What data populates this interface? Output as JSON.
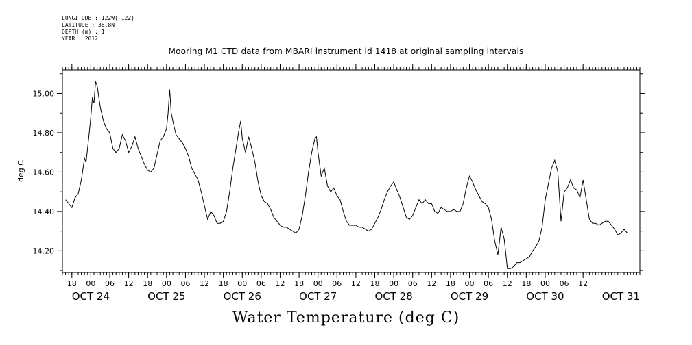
{
  "header": {
    "longitude": "LONGITUDE : 122W(-122)",
    "latitude": "LATITUDE : 36.8N",
    "depth": "DEPTH (m) : 1",
    "year": "YEAR : 2012"
  },
  "chart_data": {
    "type": "line",
    "title": "Mooring M1 CTD data from MBARI instrument id 1418 at original sampling intervals",
    "xlabel": "Water Temperature (deg C)",
    "ylabel": "deg C",
    "x_unit": "hours after 2012-10-24 00:00",
    "xlim": [
      -9,
      174
    ],
    "ylim": [
      14.09,
      15.12
    ],
    "y_ticks": [
      14.2,
      14.4,
      14.6,
      14.8,
      15.0
    ],
    "y_tick_labels": [
      "14.20",
      "14.40",
      "14.60",
      "14.80",
      "15.00"
    ],
    "hour_ticks": [
      {
        "h": -6,
        "label": "18"
      },
      {
        "h": 0,
        "label": "00"
      },
      {
        "h": 6,
        "label": "06"
      },
      {
        "h": 12,
        "label": "12"
      },
      {
        "h": 18,
        "label": "18"
      },
      {
        "h": 24,
        "label": "00"
      },
      {
        "h": 30,
        "label": "06"
      },
      {
        "h": 36,
        "label": "12"
      },
      {
        "h": 42,
        "label": "18"
      },
      {
        "h": 48,
        "label": "00"
      },
      {
        "h": 54,
        "label": "06"
      },
      {
        "h": 60,
        "label": "12"
      },
      {
        "h": 66,
        "label": "18"
      },
      {
        "h": 72,
        "label": "00"
      },
      {
        "h": 78,
        "label": "06"
      },
      {
        "h": 84,
        "label": "12"
      },
      {
        "h": 90,
        "label": "18"
      },
      {
        "h": 96,
        "label": "00"
      },
      {
        "h": 102,
        "label": "06"
      },
      {
        "h": 108,
        "label": "12"
      },
      {
        "h": 114,
        "label": "18"
      },
      {
        "h": 120,
        "label": "00"
      },
      {
        "h": 126,
        "label": "06"
      },
      {
        "h": 132,
        "label": "12"
      },
      {
        "h": 138,
        "label": "18"
      },
      {
        "h": 144,
        "label": "00"
      },
      {
        "h": 150,
        "label": "06"
      },
      {
        "h": 156,
        "label": "12"
      }
    ],
    "day_labels": [
      {
        "h": 0,
        "label": "OCT 24"
      },
      {
        "h": 24,
        "label": "OCT 25"
      },
      {
        "h": 48,
        "label": "OCT 26"
      },
      {
        "h": 72,
        "label": "OCT 27"
      },
      {
        "h": 96,
        "label": "OCT 28"
      },
      {
        "h": 120,
        "label": "OCT 29"
      },
      {
        "h": 144,
        "label": "OCT 30"
      },
      {
        "h": 168,
        "label": "OCT 31"
      }
    ],
    "series": [
      {
        "points": [
          [
            -8,
            14.46
          ],
          [
            -7,
            14.44
          ],
          [
            -6,
            14.42
          ],
          [
            -5,
            14.47
          ],
          [
            -4,
            14.49
          ],
          [
            -3,
            14.56
          ],
          [
            -2,
            14.67
          ],
          [
            -1.5,
            14.65
          ],
          [
            -0.5,
            14.8
          ],
          [
            0,
            14.88
          ],
          [
            0.5,
            14.98
          ],
          [
            1,
            14.95
          ],
          [
            1.5,
            15.06
          ],
          [
            2,
            15.04
          ],
          [
            3,
            14.93
          ],
          [
            4,
            14.86
          ],
          [
            5,
            14.82
          ],
          [
            6,
            14.8
          ],
          [
            7,
            14.72
          ],
          [
            8,
            14.7
          ],
          [
            9,
            14.72
          ],
          [
            10,
            14.79
          ],
          [
            11,
            14.76
          ],
          [
            12,
            14.7
          ],
          [
            13,
            14.73
          ],
          [
            14,
            14.78
          ],
          [
            15,
            14.72
          ],
          [
            16,
            14.68
          ],
          [
            17,
            14.64
          ],
          [
            18,
            14.61
          ],
          [
            19,
            14.6
          ],
          [
            20,
            14.62
          ],
          [
            21,
            14.69
          ],
          [
            22,
            14.76
          ],
          [
            23,
            14.78
          ],
          [
            24,
            14.82
          ],
          [
            24.5,
            14.9
          ],
          [
            25,
            15.02
          ],
          [
            25.5,
            14.9
          ],
          [
            26,
            14.86
          ],
          [
            27,
            14.79
          ],
          [
            28,
            14.77
          ],
          [
            29,
            14.75
          ],
          [
            30,
            14.72
          ],
          [
            31,
            14.68
          ],
          [
            32,
            14.62
          ],
          [
            33,
            14.59
          ],
          [
            34,
            14.56
          ],
          [
            35,
            14.5
          ],
          [
            36,
            14.43
          ],
          [
            37,
            14.36
          ],
          [
            38,
            14.4
          ],
          [
            39,
            14.38
          ],
          [
            40,
            14.34
          ],
          [
            41,
            14.34
          ],
          [
            42,
            14.35
          ],
          [
            43,
            14.4
          ],
          [
            44,
            14.5
          ],
          [
            45,
            14.62
          ],
          [
            46,
            14.72
          ],
          [
            47,
            14.82
          ],
          [
            47.5,
            14.86
          ],
          [
            48,
            14.77
          ],
          [
            49,
            14.7
          ],
          [
            50,
            14.78
          ],
          [
            51,
            14.72
          ],
          [
            52,
            14.65
          ],
          [
            53,
            14.55
          ],
          [
            54,
            14.48
          ],
          [
            55,
            14.45
          ],
          [
            56,
            14.44
          ],
          [
            57,
            14.41
          ],
          [
            58,
            14.37
          ],
          [
            59,
            14.35
          ],
          [
            60,
            14.33
          ],
          [
            61,
            14.32
          ],
          [
            62,
            14.32
          ],
          [
            63,
            14.31
          ],
          [
            64,
            14.3
          ],
          [
            65,
            14.29
          ],
          [
            66,
            14.31
          ],
          [
            67,
            14.38
          ],
          [
            68,
            14.48
          ],
          [
            69,
            14.6
          ],
          [
            70,
            14.7
          ],
          [
            71,
            14.77
          ],
          [
            71.5,
            14.78
          ],
          [
            72,
            14.7
          ],
          [
            73,
            14.58
          ],
          [
            74,
            14.62
          ],
          [
            75,
            14.53
          ],
          [
            76,
            14.5
          ],
          [
            77,
            14.52
          ],
          [
            78,
            14.48
          ],
          [
            79,
            14.46
          ],
          [
            80,
            14.4
          ],
          [
            81,
            14.35
          ],
          [
            82,
            14.33
          ],
          [
            83,
            14.33
          ],
          [
            84,
            14.33
          ],
          [
            85,
            14.32
          ],
          [
            86,
            14.32
          ],
          [
            87,
            14.31
          ],
          [
            88,
            14.3
          ],
          [
            89,
            14.31
          ],
          [
            90,
            14.34
          ],
          [
            91,
            14.37
          ],
          [
            92,
            14.41
          ],
          [
            93,
            14.46
          ],
          [
            94,
            14.5
          ],
          [
            95,
            14.53
          ],
          [
            96,
            14.55
          ],
          [
            97,
            14.51
          ],
          [
            98,
            14.47
          ],
          [
            99,
            14.42
          ],
          [
            100,
            14.37
          ],
          [
            101,
            14.36
          ],
          [
            102,
            14.38
          ],
          [
            103,
            14.42
          ],
          [
            104,
            14.46
          ],
          [
            105,
            14.44
          ],
          [
            106,
            14.46
          ],
          [
            107,
            14.44
          ],
          [
            108,
            14.44
          ],
          [
            109,
            14.4
          ],
          [
            110,
            14.39
          ],
          [
            111,
            14.42
          ],
          [
            112,
            14.41
          ],
          [
            113,
            14.4
          ],
          [
            114,
            14.4
          ],
          [
            115,
            14.41
          ],
          [
            116,
            14.4
          ],
          [
            117,
            14.4
          ],
          [
            118,
            14.44
          ],
          [
            119,
            14.52
          ],
          [
            120,
            14.58
          ],
          [
            121,
            14.55
          ],
          [
            122,
            14.51
          ],
          [
            123,
            14.48
          ],
          [
            124,
            14.45
          ],
          [
            125,
            14.44
          ],
          [
            126,
            14.42
          ],
          [
            127,
            14.36
          ],
          [
            128,
            14.25
          ],
          [
            129,
            14.18
          ],
          [
            130,
            14.32
          ],
          [
            131,
            14.26
          ],
          [
            132,
            14.11
          ],
          [
            133,
            14.11
          ],
          [
            134,
            14.12
          ],
          [
            135,
            14.14
          ],
          [
            136,
            14.14
          ],
          [
            137,
            14.15
          ],
          [
            138,
            14.16
          ],
          [
            139,
            14.17
          ],
          [
            140,
            14.2
          ],
          [
            141,
            14.22
          ],
          [
            142,
            14.25
          ],
          [
            143,
            14.32
          ],
          [
            144,
            14.46
          ],
          [
            145,
            14.54
          ],
          [
            146,
            14.62
          ],
          [
            147,
            14.66
          ],
          [
            148,
            14.6
          ],
          [
            149,
            14.35
          ],
          [
            150,
            14.5
          ],
          [
            151,
            14.52
          ],
          [
            152,
            14.56
          ],
          [
            153,
            14.52
          ],
          [
            154,
            14.51
          ],
          [
            155,
            14.47
          ],
          [
            156,
            14.56
          ],
          [
            157,
            14.46
          ],
          [
            158,
            14.36
          ],
          [
            159,
            14.34
          ],
          [
            160,
            14.34
          ],
          [
            161,
            14.33
          ],
          [
            162,
            14.34
          ],
          [
            163,
            14.35
          ],
          [
            164,
            14.35
          ],
          [
            165,
            14.33
          ],
          [
            166,
            14.31
          ],
          [
            167,
            14.28
          ],
          [
            168,
            14.29
          ],
          [
            169,
            14.31
          ],
          [
            170,
            14.29
          ]
        ]
      }
    ]
  }
}
